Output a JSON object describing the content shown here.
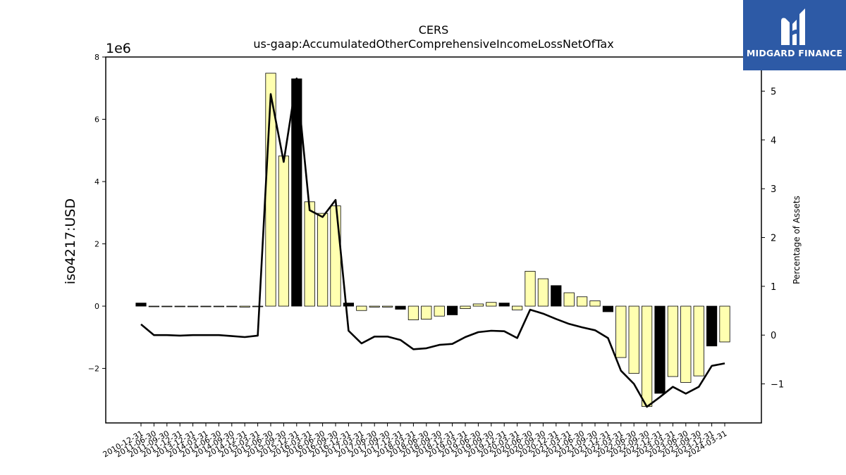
{
  "chart_data": {
    "type": "bar",
    "title": "CERS",
    "subtitle": "us-gaap:AccumulatedOtherComprehensiveIncomeLossNetOfTax",
    "ylabel": "iso4217:USD",
    "y_multiplier": "1e6",
    "y2label": "Percentage of Assets",
    "ylim": [
      -3.75,
      8.0
    ],
    "y2lim": [
      -1.8,
      5.7
    ],
    "yticks": [
      -2,
      0,
      2,
      4,
      6,
      8
    ],
    "yticklabels": [
      "−2",
      "0",
      "2",
      "4",
      "6",
      "8"
    ],
    "y2ticks": [
      -1,
      0,
      1,
      2,
      3,
      4,
      5
    ],
    "y2ticklabels": [
      "−1",
      "0",
      "1",
      "2",
      "3",
      "4",
      "5"
    ],
    "grid": false,
    "categories": [
      "2010-12-31",
      "2011-06-30",
      "2011-09-30",
      "2011-12-31",
      "2013-12-31",
      "2014-03-31",
      "2014-06-30",
      "2014-09-30",
      "2014-12-31",
      "2015-03-31",
      "2015-06-30",
      "2015-09-30",
      "2015-12-31",
      "2016-03-31",
      "2016-06-30",
      "2016-09-30",
      "2016-12-31",
      "2017-03-31",
      "2017-06-30",
      "2017-09-30",
      "2017-12-31",
      "2018-03-31",
      "2018-06-30",
      "2018-09-30",
      "2018-12-31",
      "2019-03-31",
      "2019-06-30",
      "2019-09-30",
      "2019-12-31",
      "2020-03-31",
      "2020-06-30",
      "2020-09-30",
      "2020-12-31",
      "2021-03-31",
      "2021-06-30",
      "2021-09-30",
      "2021-12-31",
      "2022-03-31",
      "2022-06-30",
      "2022-09-30",
      "2022-12-31",
      "2023-03-31",
      "2023-06-30",
      "2023-09-30",
      "2023-12-31",
      "2024-03-31"
    ],
    "series": [
      {
        "type": "bar",
        "values": [
          0.1,
          0.0,
          0.0,
          0.0,
          0.0,
          0.0,
          0.0,
          0.0,
          -0.03,
          0.0,
          7.48,
          4.82,
          7.3,
          3.35,
          2.98,
          3.22,
          0.1,
          -0.14,
          -0.03,
          -0.03,
          -0.1,
          -0.44,
          -0.42,
          -0.32,
          -0.28,
          -0.08,
          0.07,
          0.12,
          0.1,
          -0.12,
          1.12,
          0.88,
          0.66,
          0.43,
          0.3,
          0.17,
          -0.18,
          -1.65,
          -2.16,
          -3.22,
          -2.8,
          -2.26,
          -2.45,
          -2.24,
          -1.28,
          -1.15
        ],
        "annual": [
          true,
          false,
          false,
          false,
          false,
          false,
          false,
          false,
          false,
          false,
          false,
          false,
          true,
          false,
          false,
          false,
          true,
          false,
          false,
          false,
          true,
          false,
          false,
          false,
          true,
          false,
          false,
          false,
          true,
          false,
          false,
          false,
          true,
          false,
          false,
          false,
          true,
          false,
          false,
          false,
          true,
          false,
          false,
          false,
          true,
          false
        ]
      },
      {
        "type": "line",
        "axis": "right",
        "values": [
          0.22,
          0.0,
          0.0,
          -0.01,
          0.0,
          0.0,
          0.0,
          -0.02,
          -0.04,
          -0.01,
          4.94,
          3.55,
          5.26,
          2.56,
          2.42,
          2.77,
          0.09,
          -0.17,
          -0.03,
          -0.03,
          -0.1,
          -0.29,
          -0.27,
          -0.2,
          -0.18,
          -0.04,
          0.06,
          0.09,
          0.08,
          -0.06,
          0.52,
          0.44,
          0.33,
          0.23,
          0.16,
          0.1,
          -0.06,
          -0.73,
          -1.0,
          -1.47,
          -1.27,
          -1.06,
          -1.2,
          -1.06,
          -0.63,
          -0.58
        ]
      }
    ],
    "colors": {
      "bar_fill": "#ffffb0",
      "bar_fill_annual": "#000000",
      "bar_edge": "#000000",
      "line": "#000000"
    }
  },
  "logo": {
    "text": "MIDGARD FINANCE",
    "icon": "midgard-m-logo-icon",
    "bg": "#2d5aa6"
  }
}
